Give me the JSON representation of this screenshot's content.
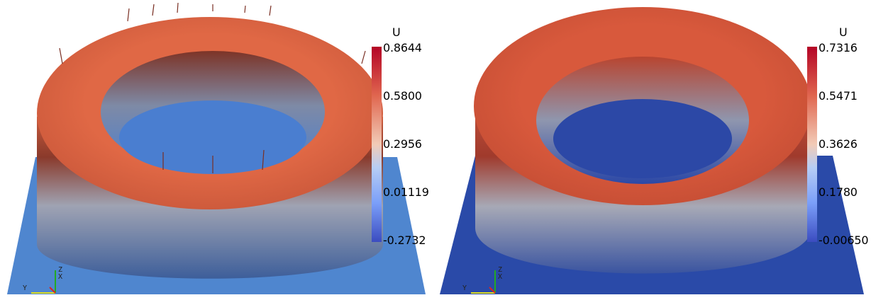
{
  "panels": [
    {
      "id": "left",
      "colorbar": {
        "title": "U",
        "labels": [
          "0.8644",
          "0.5800",
          "0.2956",
          "0.01119",
          "-0.2732"
        ],
        "gradient_colors": [
          "#b40426",
          "#e0664f",
          "#f2cbb7",
          "#b6cdf5",
          "#7b9ff9",
          "#3b4cc0"
        ]
      },
      "axes": {
        "x": "X",
        "y": "Y",
        "z": "Z"
      },
      "colors": {
        "ground": "#4f86cf",
        "inner_floor": "#4a7ed0",
        "rim_top": "#d9603f",
        "wall_top": "#8a3a2b",
        "wall_mid": "#9fa3b3",
        "wall_bottom": "#3d5e9a"
      }
    },
    {
      "id": "right",
      "colorbar": {
        "title": "U",
        "labels": [
          "0.7316",
          "0.5471",
          "0.3626",
          "0.1780",
          "-0.00650"
        ],
        "gradient_colors": [
          "#b40426",
          "#e0664f",
          "#f2cbb7",
          "#b6cdf5",
          "#7b9ff9",
          "#3b4cc0"
        ]
      },
      "axes": {
        "x": "X",
        "y": "Y",
        "z": "Z"
      },
      "colors": {
        "ground": "#2a4aa8",
        "inner_floor": "#2c48a6",
        "rim_top": "#d2553a",
        "wall_top": "#a03a2c",
        "wall_mid": "#a7a9b6",
        "wall_bottom": "#3a54a0"
      }
    }
  ]
}
